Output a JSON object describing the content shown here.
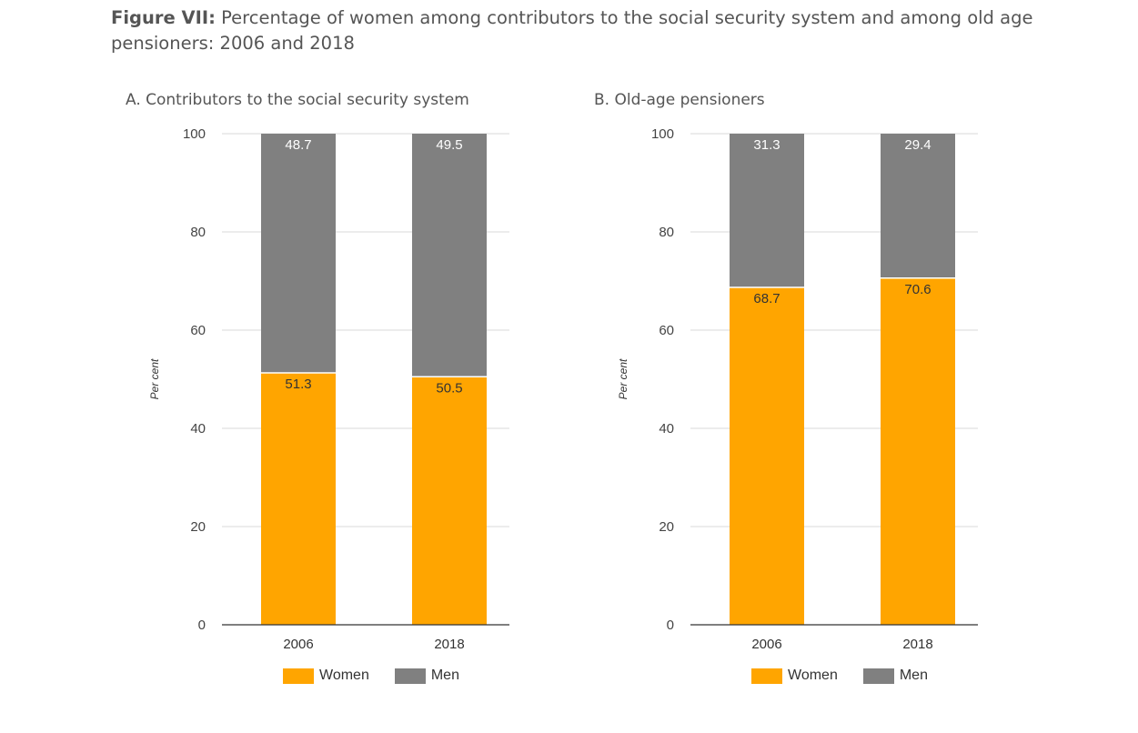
{
  "figure": {
    "title_lead": "Figure VII:",
    "title_text": " Percentage of women among contributors to the social security system and among old age pensioners: 2006 and 2018"
  },
  "colors": {
    "women": "#FFA500",
    "men": "#808080",
    "grid": "#d9d9d9",
    "axis": "#333333"
  },
  "chart_data": [
    {
      "type": "bar",
      "stacked": true,
      "title": "A. Contributors to the social security system",
      "categories": [
        "2006",
        "2018"
      ],
      "series": [
        {
          "name": "Women",
          "values": [
            51.3,
            50.5
          ]
        },
        {
          "name": "Men",
          "values": [
            48.7,
            49.5
          ]
        }
      ],
      "ylabel": "Per cent",
      "ylim": [
        0,
        100
      ],
      "yticks": [
        "0",
        "20",
        "40",
        "60",
        "80",
        "100"
      ],
      "grid": true,
      "legend": [
        "Women",
        "Men"
      ],
      "legend_position": "bottom"
    },
    {
      "type": "bar",
      "stacked": true,
      "title": "B. Old-age pensioners",
      "categories": [
        "2006",
        "2018"
      ],
      "series": [
        {
          "name": "Women",
          "values": [
            68.7,
            70.6
          ]
        },
        {
          "name": "Men",
          "values": [
            31.3,
            29.4
          ]
        }
      ],
      "ylabel": "Per cent",
      "ylim": [
        0,
        100
      ],
      "yticks": [
        "0",
        "20",
        "40",
        "60",
        "80",
        "100"
      ],
      "grid": true,
      "legend": [
        "Women",
        "Men"
      ],
      "legend_position": "bottom"
    }
  ]
}
